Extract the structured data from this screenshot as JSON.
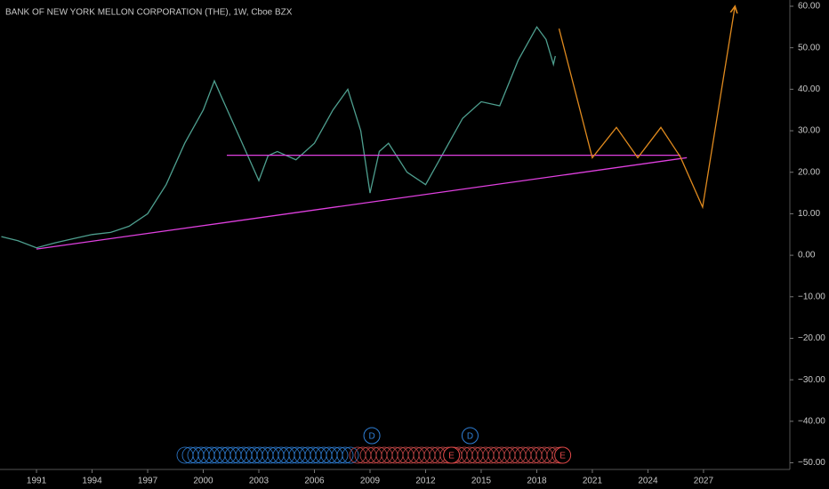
{
  "chart_data": {
    "type": "line",
    "title": "BANK OF NEW YORK MELLON CORPORATION (THE), 1W, Cboe BZX",
    "xlim": [
      1989.03,
      2031.66
    ],
    "ylim": [
      -51.6,
      61.5
    ],
    "xticks": [
      1991,
      1994,
      1997,
      2000,
      2003,
      2006,
      2009,
      2012,
      2015,
      2018,
      2021,
      2024,
      2027
    ],
    "yticks": [
      {
        "value": 60,
        "label": "60.00"
      },
      {
        "value": 50,
        "label": "50.00"
      },
      {
        "value": 40,
        "label": "40.00"
      },
      {
        "value": 30,
        "label": "30.00"
      },
      {
        "value": 20,
        "label": "20.00"
      },
      {
        "value": 10,
        "label": "10.00"
      },
      {
        "value": 0,
        "label": "0.00"
      },
      {
        "value": -10,
        "label": "−10.00"
      },
      {
        "value": -20,
        "label": "−20.00"
      },
      {
        "value": -30,
        "label": "−30.00"
      },
      {
        "value": -40,
        "label": "−40.00"
      },
      {
        "value": -50,
        "label": "−50.00"
      }
    ],
    "series": [
      {
        "color": "#4e9f8f",
        "x": [
          1989.1,
          1990,
          1991,
          1992,
          1993,
          1994,
          1995,
          1996,
          1997,
          1998,
          1999,
          2000,
          2000.6,
          2001,
          2002,
          2003,
          2003.5,
          2004,
          2005,
          2006,
          2007,
          2007.8,
          2008.5,
          2009,
          2009.5,
          2010,
          2011,
          2012,
          2013,
          2014,
          2015,
          2016,
          2017,
          2018,
          2018.5,
          2018.9,
          2019
        ],
        "values": [
          4.5,
          3.5,
          1.8,
          3,
          4,
          5,
          5.5,
          7,
          10,
          17,
          27,
          35,
          42,
          38,
          28,
          18,
          24,
          25,
          23,
          27,
          35,
          40,
          30,
          15,
          25,
          27,
          20,
          17,
          25,
          33,
          37,
          36,
          47,
          55,
          52,
          46,
          48
        ]
      }
    ],
    "lines": [
      {
        "color": "#e040e0",
        "x": [
          2001.27,
          2025.75
        ],
        "values": [
          24.1,
          24.1
        ]
      },
      {
        "color": "#e040e0",
        "x": [
          1991,
          2026.1
        ],
        "values": [
          1.5,
          23.5
        ]
      },
      {
        "color": "#e08a1e",
        "x": [
          2019.2,
          2021,
          2022.3,
          2023.45,
          2024.7,
          2025.75,
          2026.95,
          2028.7
        ],
        "values": [
          54.6,
          23.5,
          30.8,
          23.5,
          30.8,
          23.7,
          11.6,
          60
        ]
      }
    ],
    "events": [
      {
        "x": 2009.1,
        "label": "D",
        "color": "#2f7fd6"
      },
      {
        "x": 2014.4,
        "label": "D",
        "color": "#2f7fd6"
      },
      {
        "x": 2013.4,
        "label": "E",
        "color": "#e04848"
      },
      {
        "x": 2019.4,
        "label": "E",
        "color": "#e04848"
      }
    ]
  }
}
